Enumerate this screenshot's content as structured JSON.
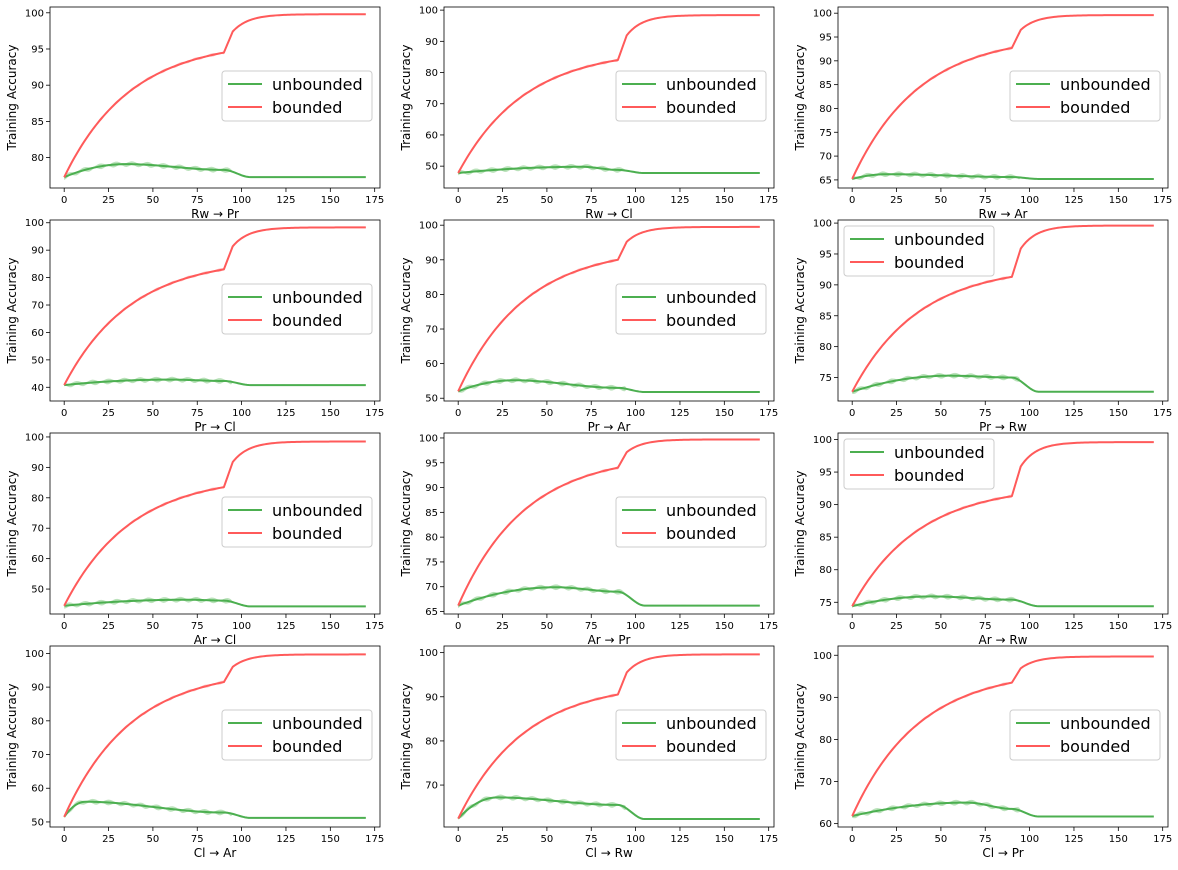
{
  "colors": {
    "unbounded": "#4caf50",
    "bounded": "#ff5a5a",
    "band_unbounded": "#9ed59e",
    "band_bounded": "#ffb0b0"
  },
  "ylabel": "Training Accuracy",
  "chart_data": [
    {
      "type": "line",
      "xlabel": "Rw → Pr",
      "ylabel": "Training Accuracy",
      "xlim": [
        -8,
        178
      ],
      "ylim": [
        75.8,
        100.8
      ],
      "xticks": [
        0,
        25,
        50,
        75,
        100,
        125,
        150,
        175
      ],
      "yticks": [
        80,
        85,
        90,
        95,
        100
      ],
      "legend": "center-right",
      "series": [
        {
          "name": "unbounded",
          "start": 77.3,
          "peak": 79.1,
          "peak_x": 35,
          "at90": 78.3,
          "final": 77.3
        },
        {
          "name": "bounded",
          "start": 77.3,
          "at90": 94.5,
          "final": 99.8
        }
      ]
    },
    {
      "type": "line",
      "xlabel": "Rw → Cl",
      "ylabel": "Training Accuracy",
      "xlim": [
        -8,
        178
      ],
      "ylim": [
        43,
        101
      ],
      "xticks": [
        0,
        25,
        50,
        75,
        100,
        125,
        150,
        175
      ],
      "yticks": [
        50,
        60,
        70,
        80,
        90,
        100
      ],
      "legend": "center-right",
      "series": [
        {
          "name": "unbounded",
          "start": 47.8,
          "peak": 49.8,
          "peak_x": 70,
          "at90": 48.8,
          "final": 47.8
        },
        {
          "name": "bounded",
          "start": 47.8,
          "at90": 84,
          "final": 98.4
        }
      ]
    },
    {
      "type": "line",
      "xlabel": "Rw → Ar",
      "ylabel": "Training Accuracy",
      "xlim": [
        -8,
        178
      ],
      "ylim": [
        63.3,
        101.3
      ],
      "xticks": [
        0,
        25,
        50,
        75,
        100,
        125,
        150,
        175
      ],
      "yticks": [
        65,
        70,
        75,
        80,
        85,
        90,
        95,
        100
      ],
      "legend": "center-right",
      "series": [
        {
          "name": "unbounded",
          "start": 65.2,
          "peak": 66.2,
          "peak_x": 20,
          "at90": 65.6,
          "final": 65.2
        },
        {
          "name": "bounded",
          "start": 65.2,
          "at90": 92.7,
          "final": 99.6
        }
      ]
    },
    {
      "type": "line",
      "xlabel": "Pr → Cl",
      "ylabel": "Training Accuracy",
      "xlim": [
        -8,
        178
      ],
      "ylim": [
        35,
        101
      ],
      "xticks": [
        0,
        25,
        50,
        75,
        100,
        125,
        150,
        175
      ],
      "yticks": [
        40,
        50,
        60,
        70,
        80,
        90,
        100
      ],
      "legend": "center-right",
      "series": [
        {
          "name": "unbounded",
          "start": 40.8,
          "peak": 42.8,
          "peak_x": 60,
          "at90": 42.3,
          "final": 40.8
        },
        {
          "name": "bounded",
          "start": 40.8,
          "at90": 83,
          "final": 98.3
        }
      ]
    },
    {
      "type": "line",
      "xlabel": "Pr → Ar",
      "ylabel": "Training Accuracy",
      "xlim": [
        -8,
        178
      ],
      "ylim": [
        49.2,
        101.5
      ],
      "xticks": [
        0,
        25,
        50,
        75,
        100,
        125,
        150,
        175
      ],
      "yticks": [
        50,
        60,
        70,
        80,
        90,
        100
      ],
      "legend": "center-right",
      "series": [
        {
          "name": "unbounded",
          "start": 52,
          "peak": 55.2,
          "peak_x": 32,
          "at90": 53,
          "final": 51.8
        },
        {
          "name": "bounded",
          "start": 52,
          "at90": 90,
          "final": 99.5
        }
      ]
    },
    {
      "type": "line",
      "xlabel": "Pr → Rw",
      "ylabel": "Training Accuracy",
      "xlim": [
        -8,
        178
      ],
      "ylim": [
        71.2,
        100.5
      ],
      "xticks": [
        0,
        25,
        50,
        75,
        100,
        125,
        150,
        175
      ],
      "yticks": [
        75,
        80,
        85,
        90,
        95,
        100
      ],
      "legend": "top-left",
      "series": [
        {
          "name": "unbounded",
          "start": 72.7,
          "peak": 75.3,
          "peak_x": 55,
          "at90": 75,
          "final": 72.7
        },
        {
          "name": "bounded",
          "start": 72.7,
          "at90": 91.3,
          "final": 99.6
        }
      ]
    },
    {
      "type": "line",
      "xlabel": "Ar → Cl",
      "ylabel": "Training Accuracy",
      "xlim": [
        -8,
        178
      ],
      "ylim": [
        41.8,
        101.3
      ],
      "xticks": [
        0,
        25,
        50,
        75,
        100,
        125,
        150,
        175
      ],
      "yticks": [
        50,
        60,
        70,
        80,
        90,
        100
      ],
      "legend": "center-right",
      "series": [
        {
          "name": "unbounded",
          "start": 44.5,
          "peak": 46.5,
          "peak_x": 70,
          "at90": 46.2,
          "final": 44.3
        },
        {
          "name": "bounded",
          "start": 44.5,
          "at90": 83.5,
          "final": 98.5
        }
      ]
    },
    {
      "type": "line",
      "xlabel": "Ar → Pr",
      "ylabel": "Training Accuracy",
      "xlim": [
        -8,
        178
      ],
      "ylim": [
        64.5,
        101
      ],
      "xticks": [
        0,
        25,
        50,
        75,
        100,
        125,
        150,
        175
      ],
      "yticks": [
        65,
        70,
        75,
        80,
        85,
        90,
        95,
        100
      ],
      "legend": "center-right",
      "series": [
        {
          "name": "unbounded",
          "start": 66.2,
          "peak": 69.9,
          "peak_x": 55,
          "at90": 69,
          "final": 66.2
        },
        {
          "name": "bounded",
          "start": 66.2,
          "at90": 94,
          "final": 99.7
        }
      ]
    },
    {
      "type": "line",
      "xlabel": "Ar → Rw",
      "ylabel": "Training Accuracy",
      "xlim": [
        -8,
        178
      ],
      "ylim": [
        73.2,
        101
      ],
      "xticks": [
        0,
        25,
        50,
        75,
        100,
        125,
        150,
        175
      ],
      "yticks": [
        75,
        80,
        85,
        90,
        95,
        100
      ],
      "legend": "top-left",
      "series": [
        {
          "name": "unbounded",
          "start": 74.4,
          "peak": 75.9,
          "peak_x": 45,
          "at90": 75.4,
          "final": 74.4
        },
        {
          "name": "bounded",
          "start": 74.4,
          "at90": 91.3,
          "final": 99.6
        }
      ]
    },
    {
      "type": "line",
      "xlabel": "Cl → Ar",
      "ylabel": "Training Accuracy",
      "xlim": [
        -8,
        178
      ],
      "ylim": [
        48.5,
        102.2
      ],
      "xticks": [
        0,
        25,
        50,
        75,
        100,
        125,
        150,
        175
      ],
      "yticks": [
        50,
        60,
        70,
        80,
        90,
        100
      ],
      "legend": "center-right",
      "series": [
        {
          "name": "unbounded",
          "start": 51.5,
          "peak": 56,
          "peak_x": 12,
          "at90": 52.8,
          "final": 51.2
        },
        {
          "name": "bounded",
          "start": 51.5,
          "at90": 91.5,
          "final": 99.7
        }
      ]
    },
    {
      "type": "line",
      "xlabel": "Cl → Rw",
      "ylabel": "Training Accuracy",
      "xlim": [
        -8,
        178
      ],
      "ylim": [
        60.5,
        101.5
      ],
      "xticks": [
        0,
        25,
        50,
        75,
        100,
        125,
        150,
        175
      ],
      "yticks": [
        70,
        80,
        90,
        100
      ],
      "legend": "center-right",
      "series": [
        {
          "name": "unbounded",
          "start": 62.4,
          "peak": 67.2,
          "peak_x": 22,
          "at90": 65.5,
          "final": 62.3
        },
        {
          "name": "bounded",
          "start": 62.4,
          "at90": 90.5,
          "final": 99.6
        }
      ]
    },
    {
      "type": "line",
      "xlabel": "Cl → Pr",
      "ylabel": "Training Accuracy",
      "xlim": [
        -8,
        178
      ],
      "ylim": [
        59.2,
        102.2
      ],
      "xticks": [
        0,
        25,
        50,
        75,
        100,
        125,
        150,
        175
      ],
      "yticks": [
        60,
        70,
        80,
        90,
        100
      ],
      "legend": "center-right",
      "series": [
        {
          "name": "unbounded",
          "start": 61.8,
          "peak": 65,
          "peak_x": 65,
          "at90": 63.5,
          "final": 61.7
        },
        {
          "name": "bounded",
          "start": 61.8,
          "at90": 93.5,
          "final": 99.7
        }
      ]
    }
  ]
}
